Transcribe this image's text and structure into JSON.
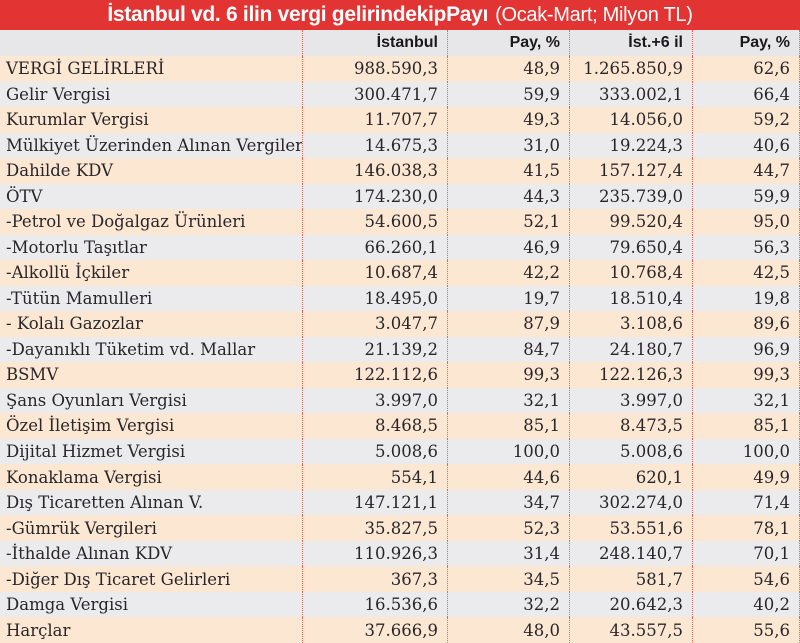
{
  "title": {
    "bold": "İstanbul vd. 6 ilin vergi gelirindekipPayı",
    "normal": "(Ocak-Mart; Milyon TL)"
  },
  "chart_data": {
    "type": "table",
    "title": "İstanbul vd. 6 ilin vergi gelirindekipPayı (Ocak-Mart; Milyon TL)",
    "columns": [
      "",
      "İstanbul",
      "Pay, %",
      "İst.+6 il",
      "Pay, %"
    ],
    "rows": [
      [
        "VERGİ GELİRLERİ",
        "988.590,3",
        "48,9",
        "1.265.850,9",
        "62,6"
      ],
      [
        "Gelir Vergisi",
        "300.471,7",
        "59,9",
        "333.002,1",
        "66,4"
      ],
      [
        "Kurumlar Vergisi",
        "11.707,7",
        "49,3",
        "14.056,0",
        "59,2"
      ],
      [
        "Mülkiyet Üzerinden Alınan Vergiler",
        "14.675,3",
        "31,0",
        "19.224,3",
        "40,6"
      ],
      [
        "Dahilde KDV",
        "146.038,3",
        "41,5",
        "157.127,4",
        "44,7"
      ],
      [
        "ÖTV",
        "174.230,0",
        "44,3",
        "235.739,0",
        "59,9"
      ],
      [
        "-Petrol ve Doğalgaz Ürünleri",
        "54.600,5",
        "52,1",
        "99.520,4",
        "95,0"
      ],
      [
        "-Motorlu Taşıtlar",
        "66.260,1",
        "46,9",
        "79.650,4",
        "56,3"
      ],
      [
        "-Alkollü İçkiler",
        "10.687,4",
        "42,2",
        "10.768,4",
        "42,5"
      ],
      [
        "-Tütün Mamulleri",
        "18.495,0",
        "19,7",
        "18.510,4",
        "19,8"
      ],
      [
        "- Kolalı Gazozlar",
        "3.047,7",
        "87,9",
        "3.108,6",
        "89,6"
      ],
      [
        "-Dayanıklı Tüketim vd. Mallar",
        "21.139,2",
        "84,7",
        "24.180,7",
        "96,9"
      ],
      [
        "BSMV",
        "122.112,6",
        "99,3",
        "122.126,3",
        "99,3"
      ],
      [
        "Şans Oyunları Vergisi",
        "3.997,0",
        "32,1",
        "3.997,0",
        "32,1"
      ],
      [
        "Özel İletişim Vergisi",
        "8.468,5",
        "85,1",
        "8.473,5",
        "85,1"
      ],
      [
        "Dijital Hizmet Vergisi",
        "5.008,6",
        "100,0",
        "5.008,6",
        "100,0"
      ],
      [
        "Konaklama Vergisi",
        "554,1",
        "44,6",
        "620,1",
        "49,9"
      ],
      [
        "Dış Ticaretten Alınan V.",
        "147.121,1",
        "34,7",
        "302.274,0",
        "71,4"
      ],
      [
        "-Gümrük Vergileri",
        "35.827,5",
        "52,3",
        "53.551,6",
        "78,1"
      ],
      [
        "-İthalde Alınan KDV",
        "110.926,3",
        "31,4",
        "248.140,7",
        "70,1"
      ],
      [
        "-Diğer Dış Ticaret Gelirleri",
        "367,3",
        "34,5",
        "581,7",
        "54,6"
      ],
      [
        "Damga Vergisi",
        "16.536,6",
        "32,2",
        "20.642,3",
        "40,2"
      ],
      [
        "Harçlar",
        "37.666,9",
        "48,0",
        "43.557,5",
        "55,6"
      ]
    ]
  },
  "colors": {
    "title_bar_red": "#e23433",
    "title_text": "#ffffff",
    "row_peach": "#fce7d3",
    "row_gray": "#ebebed",
    "header_gray": "#e7e7e9",
    "divider_dotted_red": "#dd675c",
    "body_text": "#29262a"
  }
}
